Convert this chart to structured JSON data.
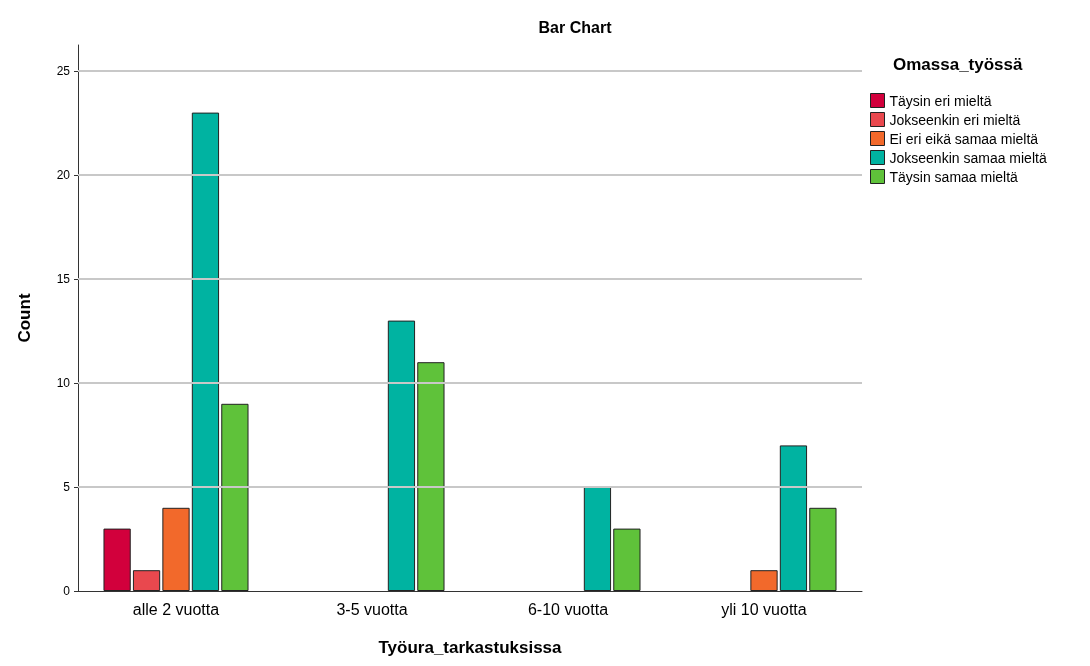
{
  "chart_data": {
    "type": "bar",
    "title": "Bar Chart",
    "xlabel": "Työura_tarkastuksissa",
    "ylabel": "Count",
    "legend_title": "Omassa_työssä",
    "categories": [
      "alle 2 vuotta",
      "3-5 vuotta",
      "6-10 vuotta",
      "yli 10 vuotta"
    ],
    "series": [
      {
        "name": "Täysin eri mieltä",
        "color": "#d2003c",
        "values": [
          3,
          0,
          0,
          0
        ]
      },
      {
        "name": "Jokseenkin eri mieltä",
        "color": "#e9484e",
        "values": [
          1,
          0,
          0,
          0
        ]
      },
      {
        "name": "Ei eri eikä samaa mieltä",
        "color": "#f2692b",
        "values": [
          4,
          0,
          0,
          1
        ]
      },
      {
        "name": "Jokseenkin samaa mieltä",
        "color": "#00b3a1",
        "values": [
          23,
          13,
          5,
          7
        ]
      },
      {
        "name": "Täysin samaa mieltä",
        "color": "#5fc23a",
        "values": [
          9,
          11,
          3,
          4
        ]
      }
    ],
    "ylim": [
      0,
      26.25
    ],
    "yticks": [
      0,
      5,
      10,
      15,
      20,
      25
    ],
    "grid": "y",
    "legend": "top right"
  }
}
